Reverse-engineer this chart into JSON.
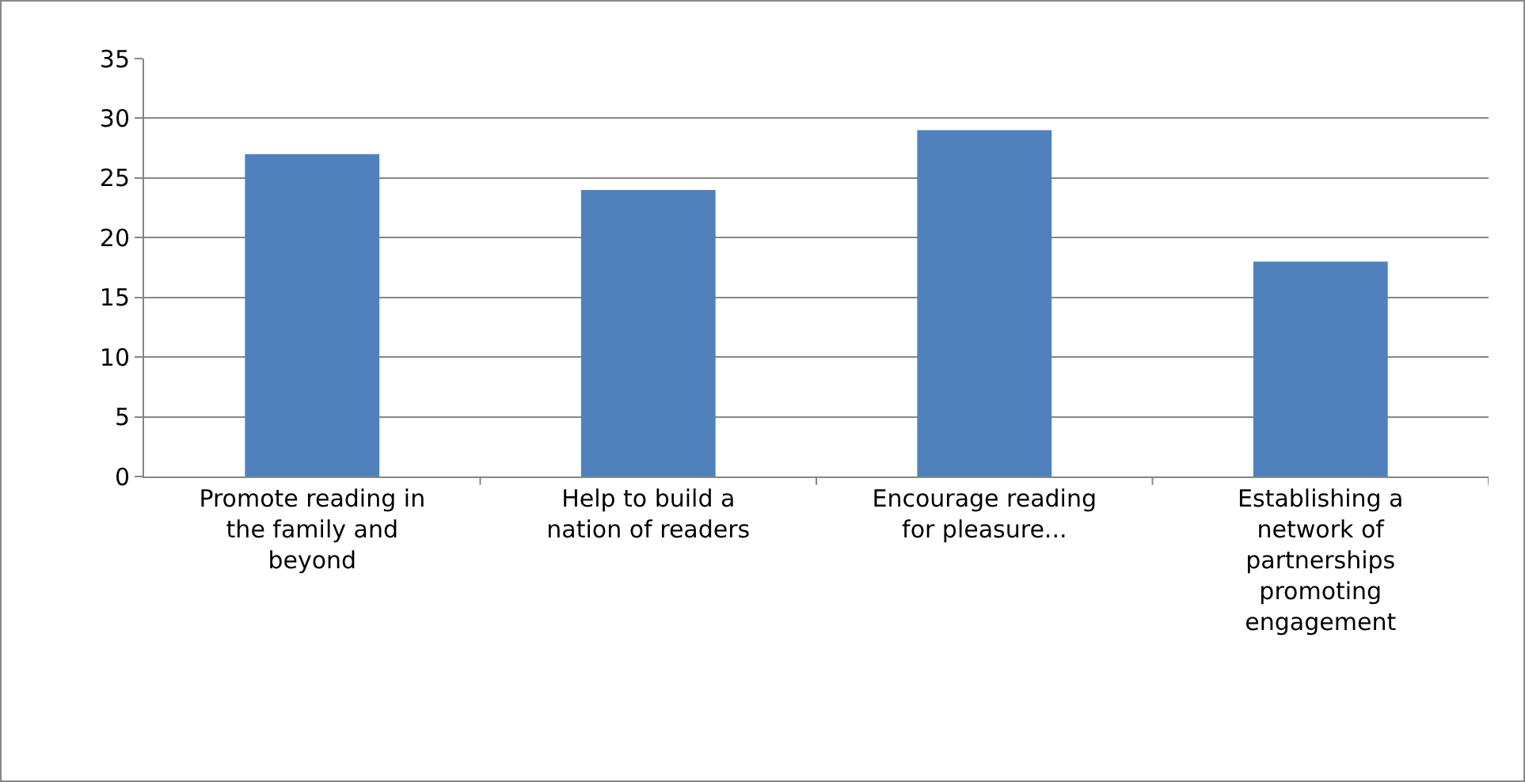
{
  "chart_data": {
    "type": "bar",
    "categories": [
      "Promote reading in the family and beyond",
      "Help to build a nation of readers",
      "Encourage reading for pleasure...",
      "Establishing a network of partnerships promoting engagement"
    ],
    "values": [
      27,
      24,
      29,
      18
    ],
    "color": "#4f81bd",
    "ylim": [
      0,
      35
    ],
    "yticks": [
      0,
      5,
      10,
      15,
      20,
      25,
      30,
      35
    ],
    "grid": "y"
  }
}
